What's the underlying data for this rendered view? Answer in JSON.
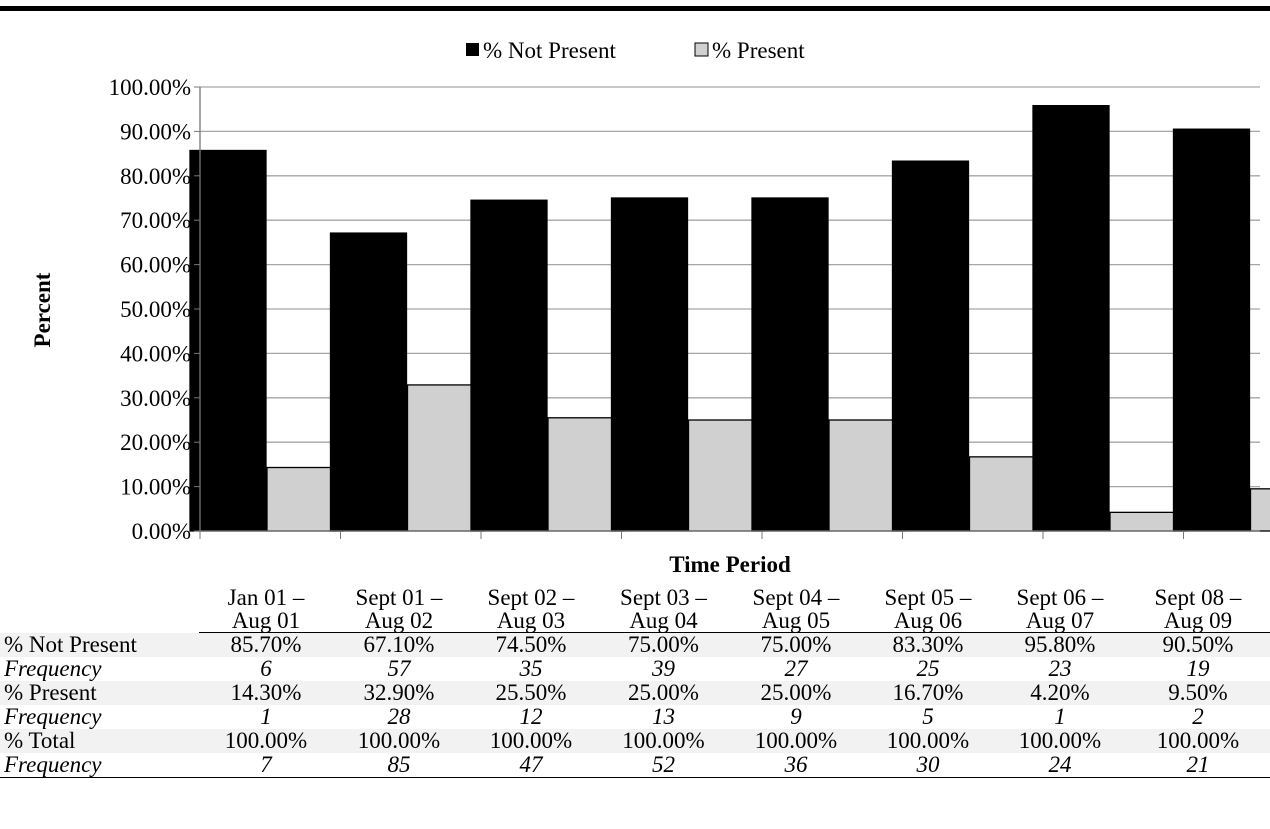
{
  "chart_data": {
    "type": "bar",
    "xlabel": "Time Period",
    "ylabel": "Percent",
    "ylim": [
      0,
      100
    ],
    "yticks": [
      "0.00%",
      "10.00%",
      "20.00%",
      "30.00%",
      "40.00%",
      "50.00%",
      "60.00%",
      "70.00%",
      "80.00%",
      "90.00%",
      "100.00%"
    ],
    "legend_position": "top-center",
    "grid": true,
    "categories": [
      [
        "Jan 01 –",
        "Aug 01"
      ],
      [
        "Sept 01 –",
        "Aug 02"
      ],
      [
        "Sept 02 –",
        "Aug 03"
      ],
      [
        "Sept 03 –",
        "Aug 04"
      ],
      [
        "Sept 04 –",
        "Aug 05"
      ],
      [
        "Sept 05 –",
        "Aug 06"
      ],
      [
        "Sept 06 –",
        "Aug 07"
      ],
      [
        "Sept 08 –",
        "Aug 09"
      ]
    ],
    "series": [
      {
        "name": "% Not Present",
        "color": "#000000",
        "values": [
          85.7,
          67.1,
          74.5,
          75.0,
          75.0,
          83.3,
          95.8,
          90.5
        ]
      },
      {
        "name": "% Present",
        "color": "#d0d0d0",
        "values": [
          14.3,
          32.9,
          25.5,
          25.0,
          25.0,
          16.7,
          4.2,
          9.5
        ]
      }
    ]
  },
  "legend": {
    "not_present": "% Not Present",
    "present": "% Present"
  },
  "table": {
    "rows": [
      {
        "label": "% Not Present",
        "style": "shaded",
        "values": [
          "85.70%",
          "67.10%",
          "74.50%",
          "75.00%",
          "75.00%",
          "83.30%",
          "95.80%",
          "90.50%"
        ]
      },
      {
        "label": "Frequency",
        "style": "italic",
        "values": [
          "6",
          "57",
          "35",
          "39",
          "27",
          "25",
          "23",
          "19"
        ]
      },
      {
        "label": "% Present",
        "style": "shaded",
        "values": [
          "14.30%",
          "32.90%",
          "25.50%",
          "25.00%",
          "25.00%",
          "16.70%",
          "4.20%",
          "9.50%"
        ]
      },
      {
        "label": "Frequency",
        "style": "italic",
        "values": [
          "1",
          "28",
          "12",
          "13",
          "9",
          "5",
          "1",
          "2"
        ]
      },
      {
        "label": "% Total",
        "style": "shaded",
        "values": [
          "100.00%",
          "100.00%",
          "100.00%",
          "100.00%",
          "100.00%",
          "100.00%",
          "100.00%",
          "100.00%"
        ]
      },
      {
        "label": "Frequency",
        "style": "italic",
        "values": [
          "7",
          "85",
          "47",
          "52",
          "36",
          "30",
          "24",
          "21"
        ]
      }
    ]
  },
  "colors": {
    "not_present": "#000000",
    "present": "#d0d0d0",
    "grid": "#a6a6a6",
    "row_shade": "#f2f2f2"
  }
}
